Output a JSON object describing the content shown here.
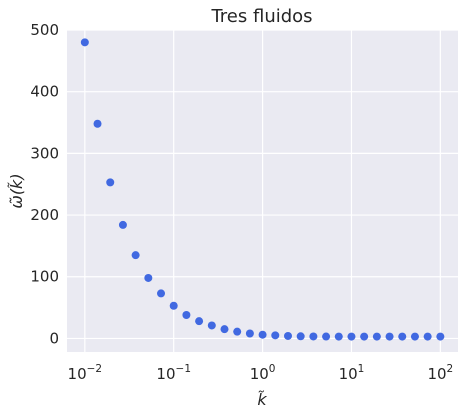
{
  "chart_data": {
    "type": "scatter",
    "title": "Tres fluidos",
    "xlabel": "k̃",
    "ylabel": "ω̃(k̃)",
    "xscale": "log",
    "xlim": [
      0.0063,
      0.0145
    ],
    "xlim_note": "",
    "xlim_decades": [
      0.0063,
      158
    ],
    "ylim": [
      -22,
      500
    ],
    "xticks": [
      {
        "value": 0.01,
        "base": "10",
        "exp": "−2"
      },
      {
        "value": 0.1,
        "base": "10",
        "exp": "−1"
      },
      {
        "value": 1,
        "base": "10",
        "exp": "0"
      },
      {
        "value": 10,
        "base": "10",
        "exp": "1"
      },
      {
        "value": 100,
        "base": "10",
        "exp": "2"
      }
    ],
    "yticks": [
      0,
      100,
      200,
      300,
      400,
      500
    ],
    "grid": true,
    "background": "#eaeaf2",
    "grid_color": "#ffffff",
    "marker_color": "#4169e1",
    "series": [
      {
        "x": [
          0.01,
          0.01389,
          0.01931,
          0.02683,
          0.03728,
          0.0518,
          0.07197,
          0.1,
          0.1389,
          0.1931,
          0.2683,
          0.3728,
          0.518,
          0.7197,
          1.0,
          1.389,
          1.931,
          2.683,
          3.728,
          5.18,
          7.197,
          10.0,
          13.89,
          19.31,
          26.83,
          37.28,
          51.8,
          71.97,
          100.0
        ],
        "y": [
          480,
          348,
          253,
          184,
          135,
          98,
          73,
          53,
          38,
          28,
          21,
          15,
          11,
          8,
          6,
          5,
          4,
          3.5,
          3.2,
          3.1,
          3.0,
          3.0,
          3.0,
          3.0,
          3.0,
          3.0,
          3.0,
          3.0,
          3.0
        ]
      }
    ]
  }
}
